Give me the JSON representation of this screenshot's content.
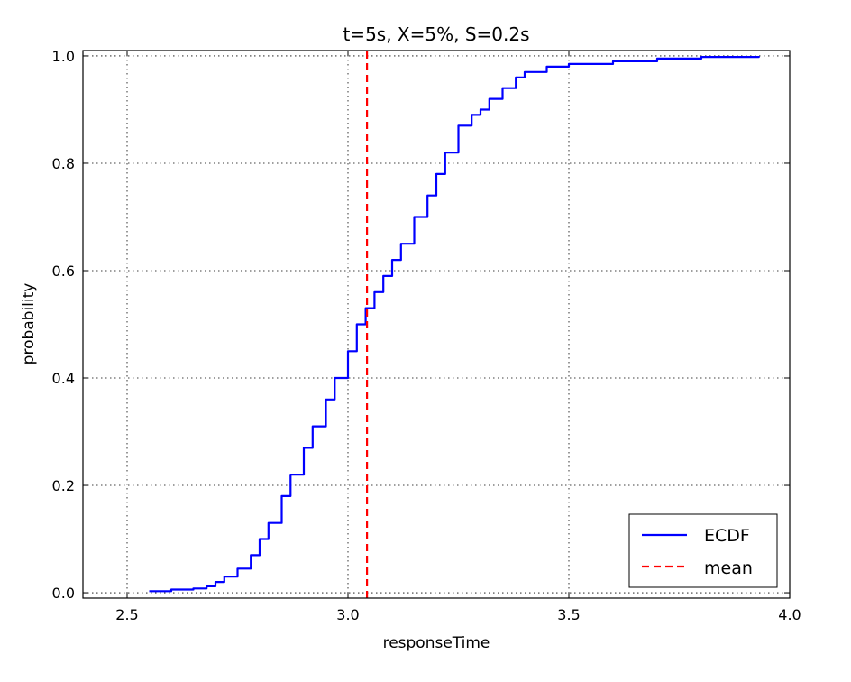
{
  "chart_data": {
    "type": "line",
    "title": "t=5s, X=5%, S=0.2s",
    "xlabel": "responseTime",
    "ylabel": "probability",
    "xlim": [
      2.4,
      4.0
    ],
    "ylim": [
      -0.01,
      1.01
    ],
    "xticks": [
      2.5,
      3.0,
      3.5,
      4.0
    ],
    "xtick_labels": [
      "2.5",
      "3.0",
      "3.5",
      "4.0"
    ],
    "yticks": [
      0.0,
      0.2,
      0.4,
      0.6,
      0.8,
      1.0
    ],
    "ytick_labels": [
      "0.0",
      "0.2",
      "0.4",
      "0.6",
      "0.8",
      "1.0"
    ],
    "grid": true,
    "legend_position": "lower-right",
    "series": [
      {
        "name": "ECDF",
        "style": "solid",
        "color": "#0000ff",
        "x": [
          2.55,
          2.6,
          2.65,
          2.68,
          2.7,
          2.72,
          2.75,
          2.78,
          2.8,
          2.82,
          2.85,
          2.87,
          2.9,
          2.92,
          2.95,
          2.97,
          3.0,
          3.02,
          3.04,
          3.06,
          3.08,
          3.1,
          3.12,
          3.15,
          3.18,
          3.2,
          3.22,
          3.25,
          3.28,
          3.3,
          3.32,
          3.35,
          3.38,
          3.4,
          3.45,
          3.5,
          3.6,
          3.7,
          3.8,
          3.93
        ],
        "y": [
          0.003,
          0.006,
          0.008,
          0.012,
          0.02,
          0.03,
          0.045,
          0.07,
          0.1,
          0.13,
          0.18,
          0.22,
          0.27,
          0.31,
          0.36,
          0.4,
          0.45,
          0.5,
          0.53,
          0.56,
          0.59,
          0.62,
          0.65,
          0.7,
          0.74,
          0.78,
          0.82,
          0.87,
          0.89,
          0.9,
          0.92,
          0.94,
          0.96,
          0.97,
          0.98,
          0.985,
          0.99,
          0.995,
          0.998,
          1.0
        ]
      },
      {
        "name": "mean",
        "style": "dashed",
        "color": "#ff0000",
        "x": [
          3.043,
          3.043
        ],
        "y": [
          -0.01,
          1.01
        ]
      }
    ]
  }
}
